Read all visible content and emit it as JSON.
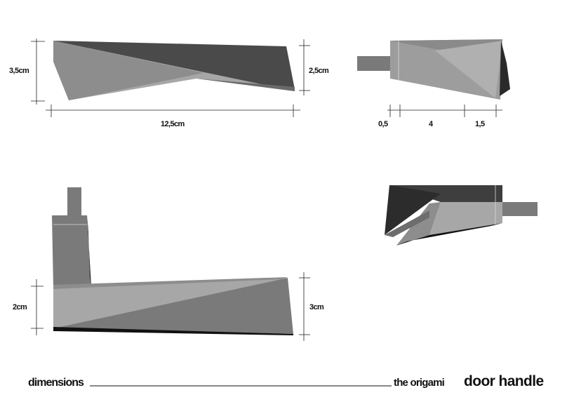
{
  "dimensions": {
    "side_height": "3,5cm",
    "side_end_height": "2,5cm",
    "side_length": "12,5cm",
    "end_seg_a": "0,5",
    "end_seg_b": "4",
    "end_seg_c": "1,5",
    "front_grip_height": "2cm",
    "front_end_height": "3cm"
  },
  "footer": {
    "label": "dimensions",
    "subtitle": "the origami",
    "title": "door handle"
  },
  "colors": {
    "dark": "#4a4a4a",
    "mid": "#7a7a7a",
    "light": "#a7a7a7",
    "black": "#111111"
  }
}
